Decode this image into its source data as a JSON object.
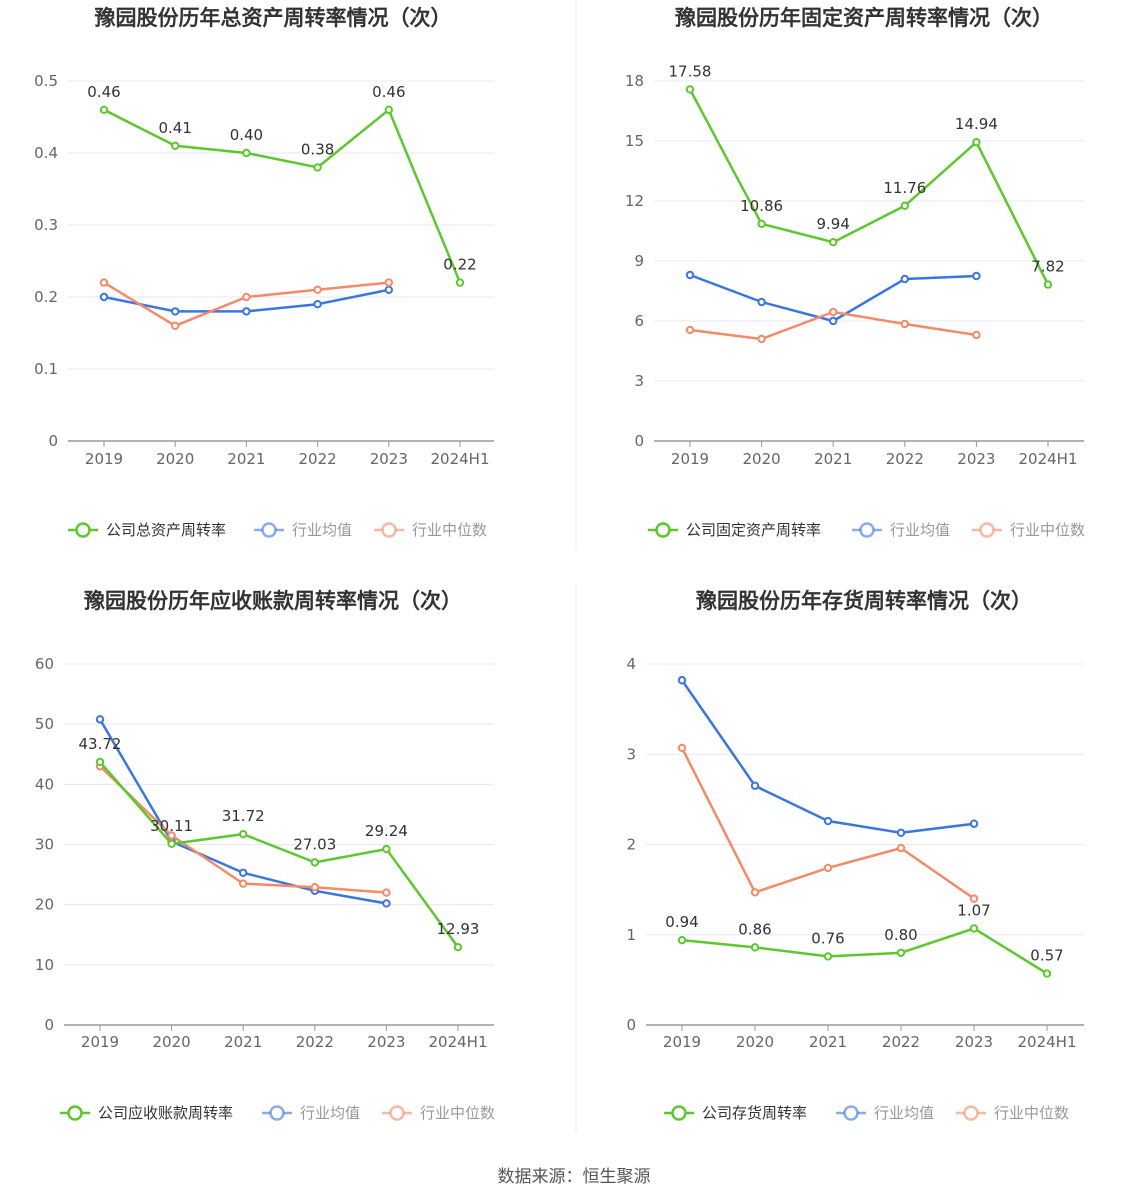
{
  "source": "数据来源：恒生聚源",
  "colors": {
    "company": "#5cc82e",
    "average": "#3a75e0",
    "median": "#f38a68",
    "grid": "#e6e8f0",
    "axis": "#999999"
  },
  "chart_data": [
    {
      "type": "line",
      "title": "豫园股份历年总资产周转率情况（次）",
      "categories": [
        "2019",
        "2020",
        "2021",
        "2022",
        "2023",
        "2024H1"
      ],
      "y_ticks": [
        "0",
        "0.1",
        "0.2",
        "0.3",
        "0.4",
        "0.5"
      ],
      "ylim": [
        0,
        0.5
      ],
      "grid": true,
      "legend": "bottom",
      "series": [
        {
          "name": "公司总资产周转率",
          "key": "company",
          "values": [
            0.46,
            0.41,
            0.4,
            0.38,
            0.46,
            0.22
          ],
          "labels": [
            "0.46",
            "0.41",
            "0.40",
            "0.38",
            "0.46",
            "0.22"
          ]
        },
        {
          "name": "行业均值",
          "key": "average",
          "values": [
            0.2,
            0.18,
            0.18,
            0.19,
            0.21,
            null
          ]
        },
        {
          "name": "行业中位数",
          "key": "median",
          "values": [
            0.22,
            0.16,
            0.2,
            0.21,
            0.22,
            null
          ]
        }
      ]
    },
    {
      "type": "line",
      "title": "豫园股份历年固定资产周转率情况（次）",
      "categories": [
        "2019",
        "2020",
        "2021",
        "2022",
        "2023",
        "2024H1"
      ],
      "y_ticks": [
        "0",
        "3",
        "6",
        "9",
        "12",
        "15",
        "18"
      ],
      "ylim": [
        0,
        18
      ],
      "grid": true,
      "legend": "bottom",
      "series": [
        {
          "name": "公司固定资产周转率",
          "key": "company",
          "values": [
            17.58,
            10.86,
            9.94,
            11.76,
            14.94,
            7.82
          ],
          "labels": [
            "17.58",
            "10.86",
            "9.94",
            "11.76",
            "14.94",
            "7.82"
          ]
        },
        {
          "name": "行业均值",
          "key": "average",
          "values": [
            8.3,
            6.95,
            6.0,
            8.1,
            8.25,
            null
          ]
        },
        {
          "name": "行业中位数",
          "key": "median",
          "values": [
            5.55,
            5.1,
            6.45,
            5.85,
            5.3,
            null
          ]
        }
      ]
    },
    {
      "type": "line",
      "title": "豫园股份历年应收账款周转率情况（次）",
      "categories": [
        "2019",
        "2020",
        "2021",
        "2022",
        "2023",
        "2024H1"
      ],
      "y_ticks": [
        "0",
        "10",
        "20",
        "30",
        "40",
        "50",
        "60"
      ],
      "ylim": [
        0,
        60
      ],
      "grid": true,
      "legend": "bottom",
      "series": [
        {
          "name": "公司应收账款周转率",
          "key": "company",
          "values": [
            43.72,
            30.11,
            31.72,
            27.03,
            29.24,
            12.93
          ],
          "labels": [
            "43.72",
            "30.11",
            "31.72",
            "27.03",
            "29.24",
            "12.93"
          ]
        },
        {
          "name": "行业均值",
          "key": "average",
          "values": [
            50.8,
            30.5,
            25.3,
            22.3,
            20.2,
            null
          ]
        },
        {
          "name": "行业中位数",
          "key": "median",
          "values": [
            43.0,
            31.5,
            23.5,
            22.9,
            22.0,
            null
          ]
        }
      ]
    },
    {
      "type": "line",
      "title": "豫园股份历年存货周转率情况（次）",
      "categories": [
        "2019",
        "2020",
        "2021",
        "2022",
        "2023",
        "2024H1"
      ],
      "y_ticks": [
        "0",
        "1",
        "2",
        "3",
        "4"
      ],
      "ylim": [
        0,
        4
      ],
      "grid": true,
      "legend": "bottom",
      "series": [
        {
          "name": "公司存货周转率",
          "key": "company",
          "values": [
            0.94,
            0.86,
            0.76,
            0.8,
            1.07,
            0.57
          ],
          "labels": [
            "0.94",
            "0.86",
            "0.76",
            "0.80",
            "1.07",
            "0.57"
          ]
        },
        {
          "name": "行业均值",
          "key": "average",
          "values": [
            3.82,
            2.65,
            2.26,
            2.13,
            2.23,
            null
          ]
        },
        {
          "name": "行业中位数",
          "key": "median",
          "values": [
            3.07,
            1.47,
            1.74,
            1.96,
            1.4,
            null
          ]
        }
      ]
    }
  ]
}
